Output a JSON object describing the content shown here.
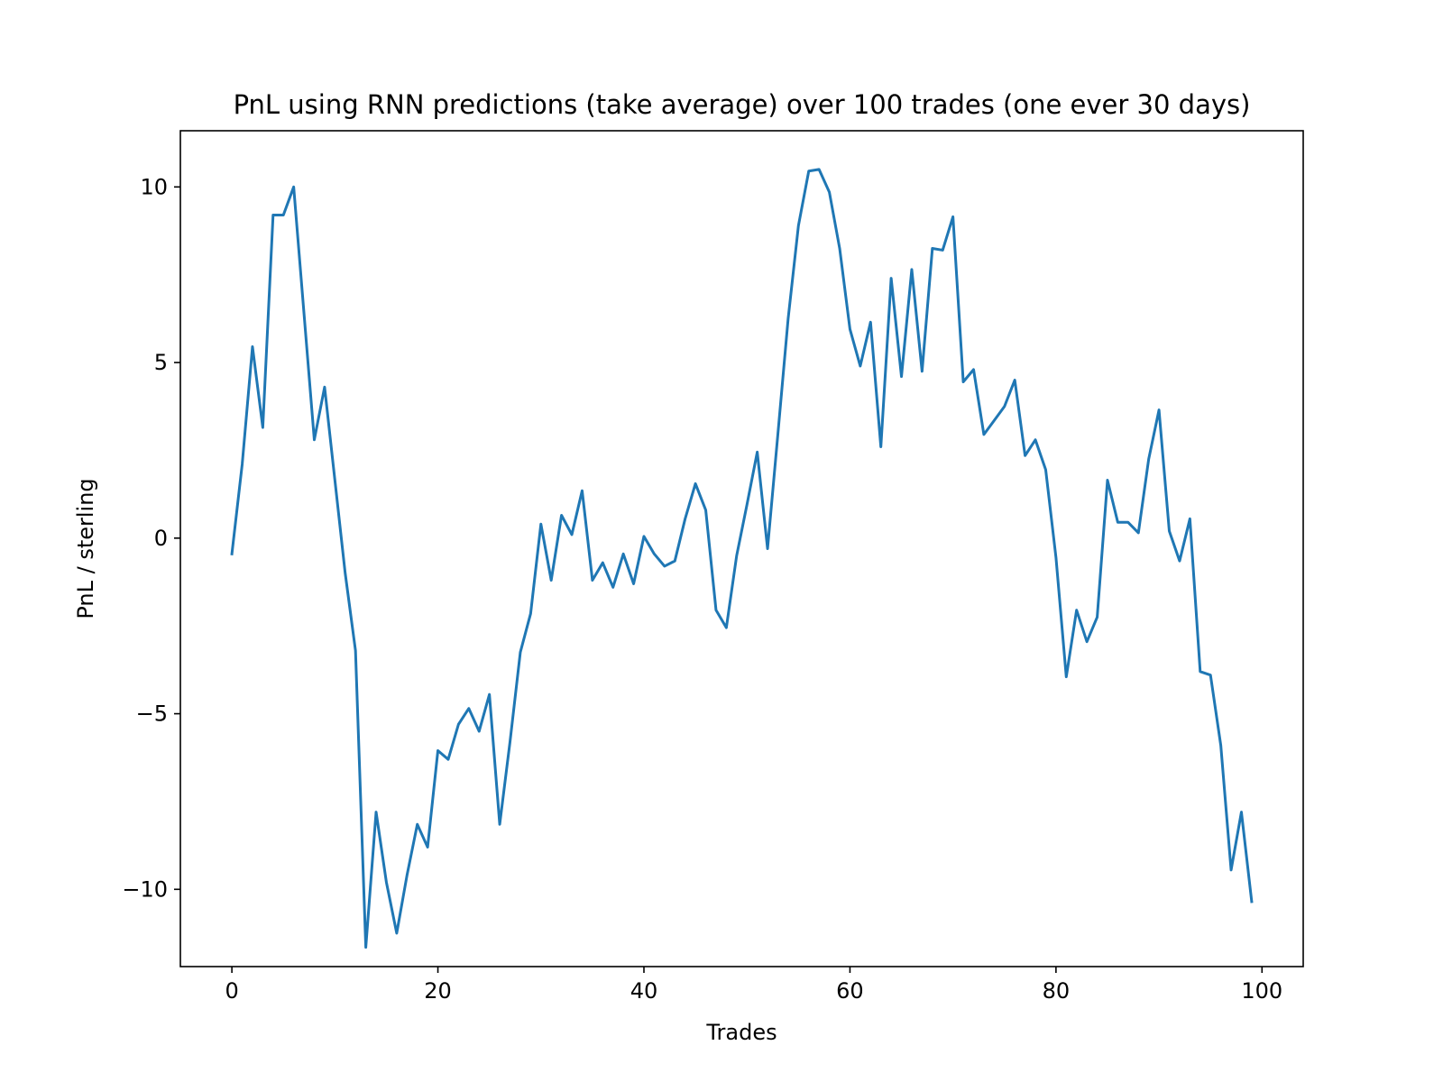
{
  "chart_data": {
    "type": "line",
    "title": "PnL using RNN predictions (take average) over 100 trades (one ever 30 days)",
    "xlabel": "Trades",
    "ylabel": "PnL / sterling",
    "xlim": [
      -5,
      104
    ],
    "ylim": [
      -12.2,
      11.6
    ],
    "grid": false,
    "legend": "none",
    "xticks": [
      0,
      20,
      40,
      60,
      80,
      100
    ],
    "xtick_labels": [
      "0",
      "20",
      "40",
      "60",
      "80",
      "100"
    ],
    "yticks": [
      10,
      5,
      0,
      -5,
      -10
    ],
    "ytick_labels": [
      "10",
      "5",
      "0",
      "−5",
      "−10"
    ],
    "line_color": "#1f77b4",
    "series": [
      {
        "x": [
          0,
          1,
          2,
          3,
          4,
          5,
          6,
          7,
          8,
          9,
          10,
          11,
          12,
          13,
          14,
          15,
          16,
          17,
          18,
          19,
          20,
          21,
          22,
          23,
          24,
          25,
          26,
          27,
          28,
          29,
          30,
          31,
          32,
          33,
          34,
          35,
          36,
          37,
          38,
          39,
          40,
          41,
          42,
          43,
          44,
          45,
          46,
          47,
          48,
          49,
          50,
          51,
          52,
          53,
          54,
          55,
          56,
          57,
          58,
          59,
          60,
          61,
          62,
          63,
          64,
          65,
          66,
          67,
          68,
          69,
          70,
          71,
          72,
          73,
          74,
          75,
          76,
          77,
          78,
          79,
          80,
          81,
          82,
          83,
          84,
          85,
          86,
          87,
          88,
          89,
          90,
          91,
          92,
          93,
          94,
          95,
          96,
          97,
          98,
          99
        ],
        "values": [
          -0.45,
          2.1,
          5.45,
          3.15,
          9.2,
          9.2,
          10.0,
          6.4,
          2.8,
          4.3,
          1.65,
          -1.0,
          -3.2,
          -11.65,
          -7.8,
          -9.8,
          -11.25,
          -9.6,
          -8.15,
          -8.8,
          -6.05,
          -6.3,
          -5.3,
          -4.85,
          -5.5,
          -4.45,
          -8.15,
          -5.8,
          -3.25,
          -2.15,
          0.4,
          -1.2,
          0.65,
          0.1,
          1.35,
          -1.2,
          -0.7,
          -1.4,
          -0.45,
          -1.3,
          0.05,
          -0.45,
          -0.8,
          -0.65,
          0.55,
          1.55,
          0.8,
          -2.05,
          -2.55,
          -0.5,
          0.95,
          2.45,
          -0.3,
          2.95,
          6.25,
          8.9,
          10.45,
          10.5,
          9.85,
          8.25,
          5.95,
          4.9,
          6.15,
          2.6,
          7.4,
          4.6,
          7.65,
          4.75,
          8.25,
          8.2,
          9.15,
          4.45,
          4.8,
          2.95,
          3.35,
          3.75,
          4.5,
          2.35,
          2.8,
          1.95,
          -0.55,
          -3.95,
          -2.05,
          -2.95,
          -2.25,
          1.65,
          0.45,
          0.45,
          0.15,
          2.25,
          3.65,
          0.2,
          -0.65,
          0.55,
          -3.8,
          -3.9,
          -5.9,
          -9.45,
          -7.8,
          -10.35
        ]
      }
    ]
  }
}
